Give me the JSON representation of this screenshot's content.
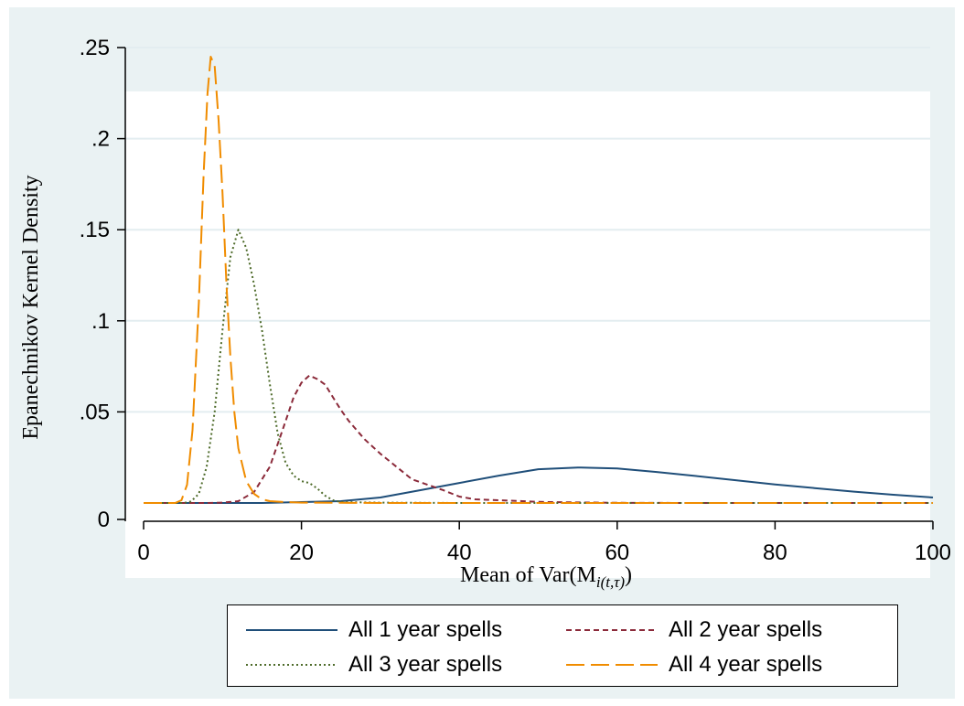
{
  "chart_data": {
    "type": "line",
    "xlabel_main": "Mean of Var(M",
    "xlabel_sub": "i(t,τ)",
    "xlabel_close": ")",
    "ylabel": "Epanechnikov Kernel Density",
    "xlim": [
      0,
      100
    ],
    "ylim": [
      0,
      0.25
    ],
    "x_ticks": [
      0,
      20,
      40,
      60,
      80,
      100
    ],
    "x_tick_labels": [
      "0",
      "20",
      "40",
      "60",
      "80",
      "100"
    ],
    "y_ticks": [
      0,
      0.05,
      0.1,
      0.15,
      0.2,
      0.25
    ],
    "y_tick_labels": [
      "0",
      ".05",
      ".1",
      ".15",
      ".2",
      ".25"
    ],
    "grid": true,
    "legend_position": "bottom",
    "series": [
      {
        "name": "All 1 year spells",
        "color": "#1f4e79",
        "style": "solid",
        "points": [
          [
            0,
            0
          ],
          [
            15,
            0
          ],
          [
            20,
            0.0005
          ],
          [
            25,
            0.001
          ],
          [
            30,
            0.003
          ],
          [
            35,
            0.007
          ],
          [
            40,
            0.011
          ],
          [
            45,
            0.015
          ],
          [
            50,
            0.0185
          ],
          [
            55,
            0.0195
          ],
          [
            60,
            0.019
          ],
          [
            65,
            0.017
          ],
          [
            70,
            0.0148
          ],
          [
            75,
            0.0125
          ],
          [
            80,
            0.0102
          ],
          [
            85,
            0.0082
          ],
          [
            90,
            0.0062
          ],
          [
            95,
            0.0045
          ],
          [
            100,
            0.003
          ]
        ]
      },
      {
        "name": "All 2 year spells",
        "color": "#8b2a3a",
        "style": "dashed",
        "points": [
          [
            0,
            0
          ],
          [
            8,
            0
          ],
          [
            10,
            0.0002
          ],
          [
            12,
            0.001
          ],
          [
            14,
            0.006
          ],
          [
            16,
            0.02
          ],
          [
            18,
            0.045
          ],
          [
            19,
            0.058
          ],
          [
            20,
            0.066
          ],
          [
            21,
            0.07
          ],
          [
            22,
            0.068
          ],
          [
            23,
            0.065
          ],
          [
            24,
            0.058
          ],
          [
            25,
            0.051
          ],
          [
            26,
            0.045
          ],
          [
            28,
            0.035
          ],
          [
            30,
            0.027
          ],
          [
            32,
            0.02
          ],
          [
            34,
            0.013
          ],
          [
            36,
            0.01
          ],
          [
            38,
            0.007
          ],
          [
            40,
            0.0035
          ],
          [
            42,
            0.002
          ],
          [
            45,
            0.0015
          ],
          [
            48,
            0.001
          ],
          [
            50,
            0.0006
          ],
          [
            55,
            0.0003
          ],
          [
            60,
            0.0001
          ],
          [
            70,
            0
          ],
          [
            100,
            0
          ]
        ]
      },
      {
        "name": "All 3 year spells",
        "color": "#4e6b2a",
        "style": "dotted",
        "points": [
          [
            0,
            0
          ],
          [
            5,
            0
          ],
          [
            6,
            0.0008
          ],
          [
            7,
            0.005
          ],
          [
            8,
            0.02
          ],
          [
            9,
            0.05
          ],
          [
            10,
            0.095
          ],
          [
            11,
            0.135
          ],
          [
            12,
            0.15
          ],
          [
            13,
            0.14
          ],
          [
            14,
            0.12
          ],
          [
            15,
            0.095
          ],
          [
            16,
            0.065
          ],
          [
            17,
            0.038
          ],
          [
            18,
            0.022
          ],
          [
            19,
            0.015
          ],
          [
            20,
            0.012
          ],
          [
            21,
            0.011
          ],
          [
            22,
            0.008
          ],
          [
            23,
            0.004
          ],
          [
            24,
            0.0015
          ],
          [
            25,
            0.0005
          ],
          [
            30,
            0.0002
          ],
          [
            40,
            0
          ],
          [
            100,
            0
          ]
        ]
      },
      {
        "name": "All 4 year spells",
        "color": "#f08c00",
        "style": "longdash",
        "points": [
          [
            0,
            0
          ],
          [
            4,
            0
          ],
          [
            4.8,
            0.0015
          ],
          [
            5.5,
            0.01
          ],
          [
            6.2,
            0.04
          ],
          [
            7,
            0.11
          ],
          [
            7.6,
            0.18
          ],
          [
            8.1,
            0.225
          ],
          [
            8.5,
            0.245
          ],
          [
            9,
            0.24
          ],
          [
            9.5,
            0.21
          ],
          [
            10,
            0.17
          ],
          [
            10.5,
            0.12
          ],
          [
            11,
            0.08
          ],
          [
            11.5,
            0.05
          ],
          [
            12,
            0.03
          ],
          [
            13,
            0.012
          ],
          [
            14,
            0.005
          ],
          [
            15,
            0.002
          ],
          [
            16,
            0.001
          ],
          [
            18,
            0.0005
          ],
          [
            20,
            0.0002
          ],
          [
            30,
            0
          ],
          [
            100,
            0
          ]
        ]
      }
    ]
  }
}
